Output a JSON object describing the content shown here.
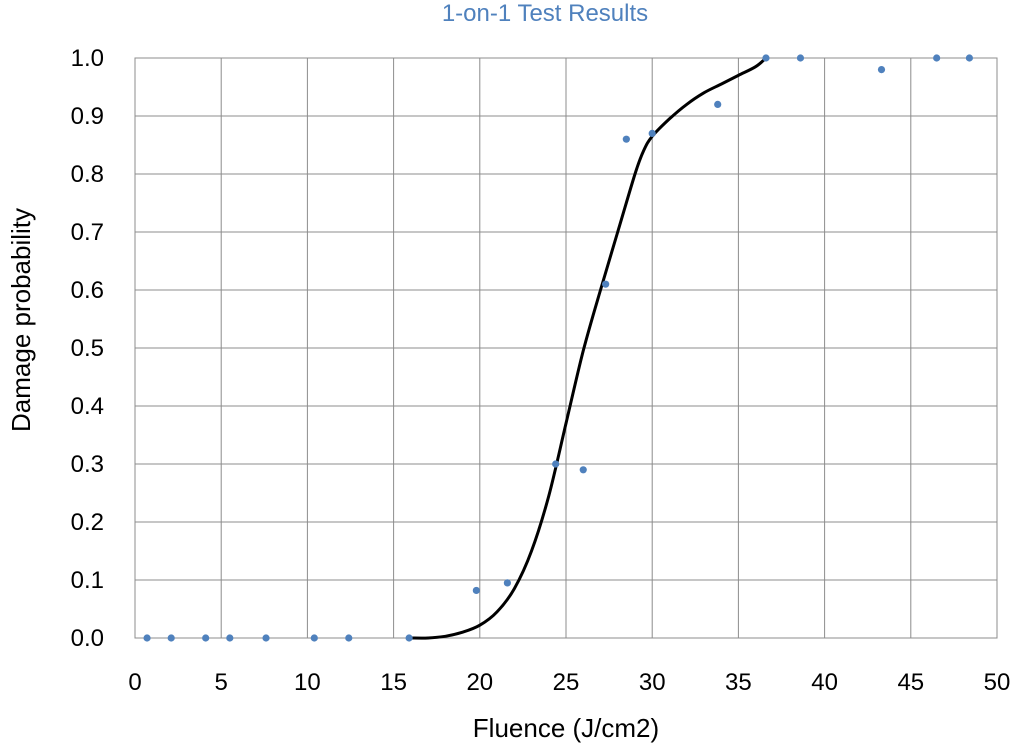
{
  "chart_data": {
    "type": "scatter",
    "title": "1-on-1 Test Results",
    "xlabel": "Fluence (J/cm2)",
    "ylabel": "Damage probability",
    "xlim": [
      0,
      50
    ],
    "ylim": [
      0,
      1.0
    ],
    "x_ticks": [
      0,
      5,
      10,
      15,
      20,
      25,
      30,
      35,
      40,
      45,
      50
    ],
    "y_ticks": [
      0.0,
      0.1,
      0.2,
      0.3,
      0.4,
      0.5,
      0.6,
      0.7,
      0.8,
      0.9,
      1.0
    ],
    "y_tick_labels": [
      "0.0",
      "0.1",
      "0.2",
      "0.3",
      "0.4",
      "0.5",
      "0.6",
      "0.7",
      "0.8",
      "0.9",
      "1.0"
    ],
    "grid": true,
    "legend": "none",
    "colors": {
      "title": "#4f81bd",
      "points": "#4f81bd",
      "curve": "#000000",
      "grid": "#8c8c8c"
    },
    "series": [
      {
        "kind": "points",
        "x": [
          0.7,
          2.1,
          4.1,
          5.5,
          7.6,
          10.4,
          12.4,
          15.9,
          19.8,
          21.6,
          24.4,
          26.0,
          27.3,
          28.5,
          30.0,
          33.8,
          36.6,
          38.6,
          43.3,
          46.5,
          48.4
        ],
        "y": [
          0.0,
          0.0,
          0.0,
          0.0,
          0.0,
          0.0,
          0.0,
          0.0,
          0.082,
          0.095,
          0.3,
          0.29,
          0.61,
          0.86,
          0.87,
          0.92,
          1.0,
          1.0,
          0.98,
          1.0,
          1.0
        ]
      },
      {
        "kind": "fit-curve",
        "x": [
          16.0,
          17.0,
          18.0,
          19.0,
          20.0,
          21.0,
          22.0,
          23.0,
          24.0,
          25.0,
          26.0,
          27.0,
          28.0,
          29.0,
          29.5,
          30.0,
          31.0,
          32.0,
          33.0,
          34.0,
          35.0,
          36.0,
          36.6
        ],
        "y": [
          0.0,
          0.0,
          0.003,
          0.01,
          0.022,
          0.045,
          0.085,
          0.15,
          0.245,
          0.37,
          0.495,
          0.6,
          0.7,
          0.8,
          0.84,
          0.865,
          0.895,
          0.92,
          0.94,
          0.955,
          0.97,
          0.985,
          1.0
        ]
      }
    ]
  }
}
